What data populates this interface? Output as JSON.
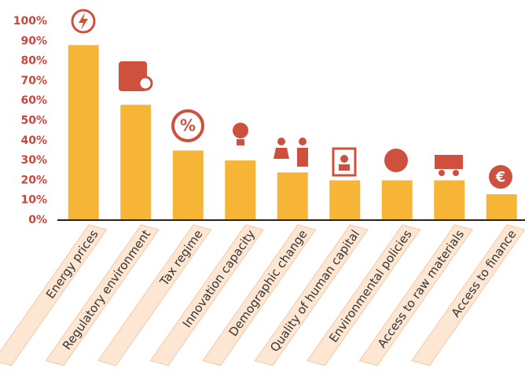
{
  "chart_data": {
    "type": "bar",
    "categories": [
      "Energy prices",
      "Regulatory environment",
      "Tax regime",
      "Innovation capacity",
      "Demographic change",
      "Quality of human capital",
      "Environmental policies",
      "Access to raw materials",
      "Access to finance"
    ],
    "values": [
      88,
      58,
      35,
      30,
      24,
      20,
      20,
      20,
      13
    ],
    "color": "#f7b538",
    "ylim": [
      0,
      100
    ],
    "yticks": [
      {
        "value": 0,
        "label": "0%"
      },
      {
        "value": 10,
        "label": "10%"
      },
      {
        "value": 20,
        "label": "20%"
      },
      {
        "value": 30,
        "label": "30%"
      },
      {
        "value": 40,
        "label": "40%"
      },
      {
        "value": 50,
        "label": "50%"
      },
      {
        "value": 60,
        "label": "60%"
      },
      {
        "value": 70,
        "label": "70%"
      },
      {
        "value": 80,
        "label": "80%"
      },
      {
        "value": 90,
        "label": "90%"
      },
      {
        "value": 100,
        "label": "100%"
      }
    ],
    "grid": false
  }
}
